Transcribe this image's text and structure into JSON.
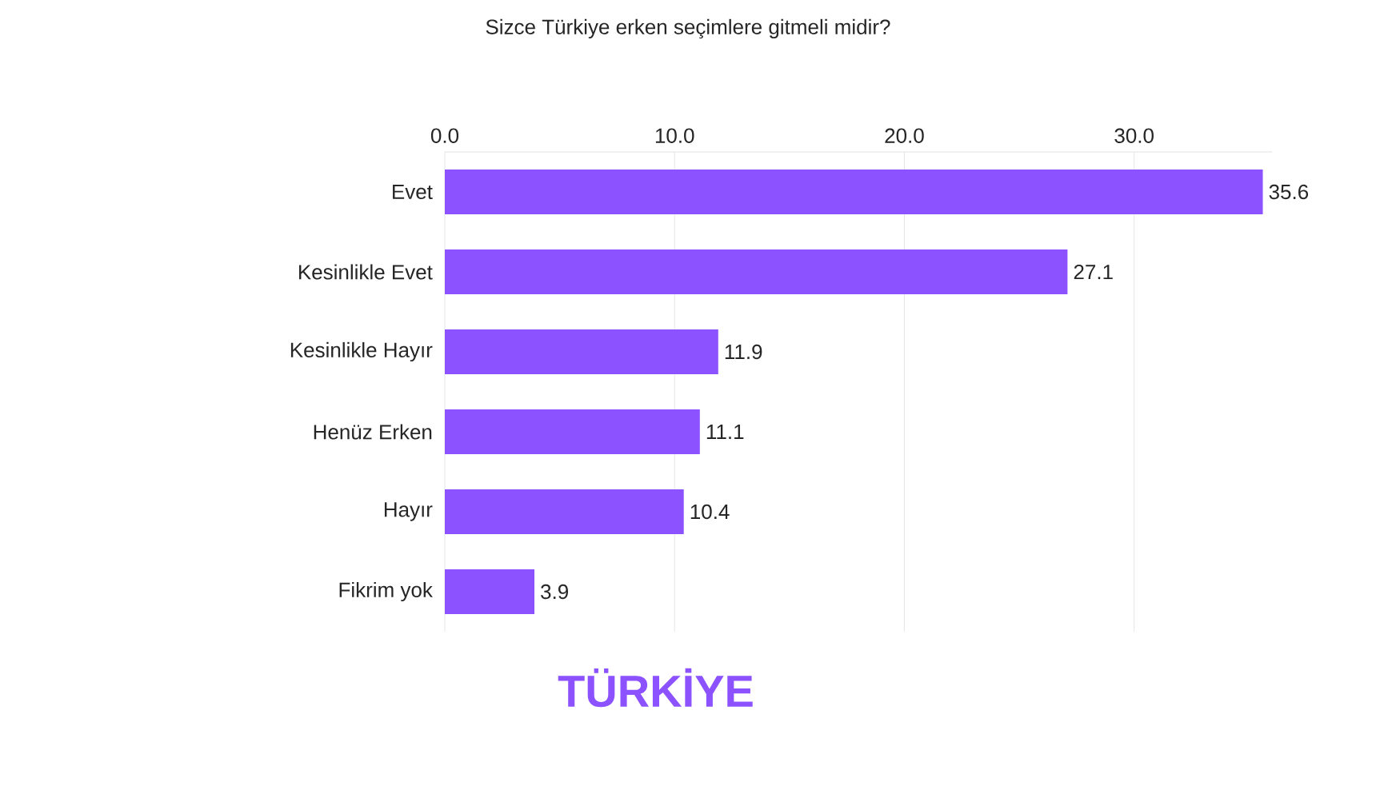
{
  "chart_data": {
    "type": "bar",
    "orientation": "horizontal",
    "title": "Sizce Türkiye erken seçimlere gitmeli midir?",
    "categories": [
      "Evet",
      "Kesinlikle Evet",
      "Kesinlikle Hayır",
      "Henüz Erken",
      "Hayır",
      "Fikrim yok"
    ],
    "values": [
      35.6,
      27.1,
      11.9,
      11.1,
      10.4,
      3.9
    ],
    "color": "#8c52ff",
    "xlim": [
      0,
      36
    ],
    "xticks": [
      {
        "value": 0,
        "label": "0.0"
      },
      {
        "value": 10,
        "label": "10.0"
      },
      {
        "value": 20,
        "label": "20.0"
      },
      {
        "value": 30,
        "label": "30.0"
      }
    ],
    "grid": "x",
    "data_labels": true,
    "annotations": [
      "TÜRKİYE"
    ]
  }
}
